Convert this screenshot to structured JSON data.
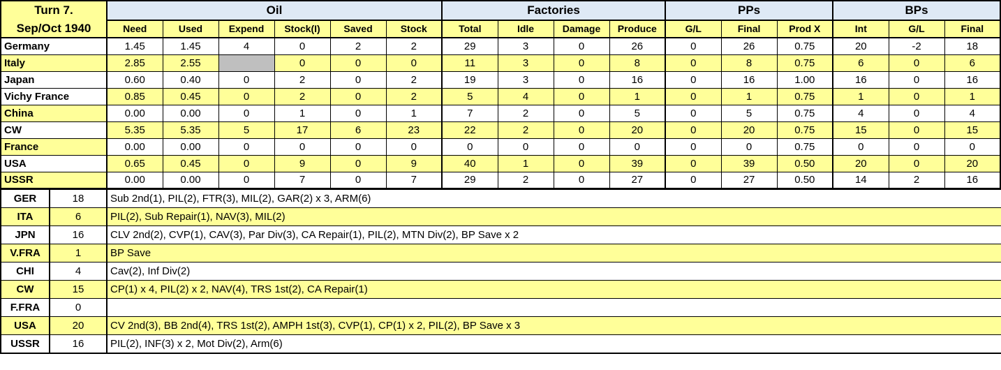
{
  "title": {
    "line1": "Turn 7.",
    "line2": "Sep/Oct 1940"
  },
  "colors": {
    "row_yellow": "#ffff99",
    "header_blue": "#dee9f5",
    "blocked_gray": "#bfbfbf",
    "grid": "#000000"
  },
  "header": {
    "groups": [
      {
        "label": "Oil",
        "span": 6
      },
      {
        "label": "Factories",
        "span": 4
      },
      {
        "label": "PPs",
        "span": 3
      },
      {
        "label": "BPs",
        "span": 3
      }
    ],
    "columns": [
      "Need",
      "Used",
      "Expend",
      "Stock(I)",
      "Saved",
      "Stock",
      "Total",
      "Idle",
      "Damage",
      "Produce",
      "G/L",
      "Final",
      "Prod X",
      "Int",
      "G/L",
      "Final"
    ]
  },
  "production": {
    "rows": [
      {
        "name": "Germany",
        "name_bg": "white",
        "data_bg": "white",
        "cells": [
          "1.45",
          "1.45",
          "4",
          "0",
          "2",
          "2",
          "29",
          "3",
          "0",
          "26",
          "0",
          "26",
          "0.75",
          "20",
          "-2",
          "18"
        ]
      },
      {
        "name": "Italy",
        "name_bg": "yellow",
        "data_bg": "yellow",
        "gray_cells": [
          2
        ],
        "cells": [
          "2.85",
          "2.55",
          "",
          "0",
          "0",
          "0",
          "11",
          "3",
          "0",
          "8",
          "0",
          "8",
          "0.75",
          "6",
          "0",
          "6"
        ]
      },
      {
        "name": "Japan",
        "name_bg": "white",
        "data_bg": "white",
        "cells": [
          "0.60",
          "0.40",
          "0",
          "2",
          "0",
          "2",
          "19",
          "3",
          "0",
          "16",
          "0",
          "16",
          "1.00",
          "16",
          "0",
          "16"
        ]
      },
      {
        "name": "Vichy France",
        "name_bg": "white",
        "data_bg": "yellow",
        "cells": [
          "0.85",
          "0.45",
          "0",
          "2",
          "0",
          "2",
          "5",
          "4",
          "0",
          "1",
          "0",
          "1",
          "0.75",
          "1",
          "0",
          "1"
        ]
      },
      {
        "name": "China",
        "name_bg": "yellow",
        "data_bg": "white",
        "cells": [
          "0.00",
          "0.00",
          "0",
          "1",
          "0",
          "1",
          "7",
          "2",
          "0",
          "5",
          "0",
          "5",
          "0.75",
          "4",
          "0",
          "4"
        ]
      },
      {
        "name": "CW",
        "name_bg": "white",
        "data_bg": "yellow",
        "cells": [
          "5.35",
          "5.35",
          "5",
          "17",
          "6",
          "23",
          "22",
          "2",
          "0",
          "20",
          "0",
          "20",
          "0.75",
          "15",
          "0",
          "15"
        ]
      },
      {
        "name": "France",
        "name_bg": "yellow",
        "data_bg": "white",
        "cells": [
          "0.00",
          "0.00",
          "0",
          "0",
          "0",
          "0",
          "0",
          "0",
          "0",
          "0",
          "0",
          "0",
          "0.75",
          "0",
          "0",
          "0"
        ]
      },
      {
        "name": "USA",
        "name_bg": "white",
        "data_bg": "yellow",
        "cells": [
          "0.65",
          "0.45",
          "0",
          "9",
          "0",
          "9",
          "40",
          "1",
          "0",
          "39",
          "0",
          "39",
          "0.50",
          "20",
          "0",
          "20"
        ]
      },
      {
        "name": "USSR",
        "name_bg": "yellow",
        "data_bg": "white",
        "cells": [
          "0.00",
          "0.00",
          "0",
          "7",
          "0",
          "7",
          "29",
          "2",
          "0",
          "27",
          "0",
          "27",
          "0.50",
          "14",
          "2",
          "16"
        ]
      }
    ]
  },
  "builds": {
    "rows": [
      {
        "name": "GER",
        "bps": "18",
        "bg": "white",
        "builds": "Sub 2nd(1), PIL(2), FTR(3), MIL(2), GAR(2) x 3, ARM(6)"
      },
      {
        "name": "ITA",
        "bps": "6",
        "bg": "yellow",
        "builds": "PIL(2), Sub Repair(1), NAV(3), MIL(2)"
      },
      {
        "name": "JPN",
        "bps": "16",
        "bg": "white",
        "builds": "CLV 2nd(2), CVP(1), CAV(3), Par Div(3), CA Repair(1), PIL(2), MTN Div(2), BP Save x 2"
      },
      {
        "name": "V.FRA",
        "bps": "1",
        "bg": "yellow",
        "builds": "BP Save"
      },
      {
        "name": "CHI",
        "bps": "4",
        "bg": "white",
        "builds": "Cav(2), Inf Div(2)"
      },
      {
        "name": "CW",
        "bps": "15",
        "bg": "yellow",
        "builds": "CP(1) x 4, PIL(2) x 2, NAV(4), TRS 1st(2), CA Repair(1)"
      },
      {
        "name": "F.FRA",
        "bps": "0",
        "bg": "white",
        "builds": ""
      },
      {
        "name": "USA",
        "bps": "20",
        "bg": "yellow",
        "builds": "CV 2nd(3), BB 2nd(4), TRS 1st(2), AMPH 1st(3), CVP(1), CP(1) x 2, PIL(2), BP Save x 3"
      },
      {
        "name": "USSR",
        "bps": "16",
        "bg": "white",
        "builds": "PIL(2), INF(3) x 2, Mot Div(2), Arm(6)"
      }
    ]
  }
}
